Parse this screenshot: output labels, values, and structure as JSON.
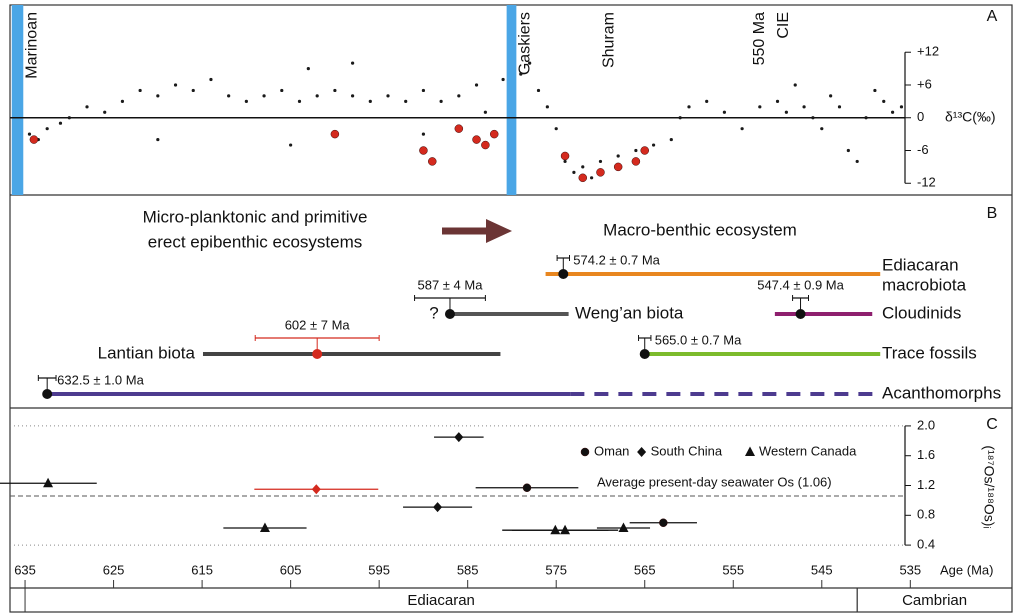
{
  "chart_data": [
    {
      "type": "scatter",
      "panel": "A",
      "xlim": [
        636.7,
        535.6
      ],
      "ylim": [
        -13.6,
        20.1
      ],
      "yticks": [
        {
          "value": 12,
          "label": "+12"
        },
        {
          "value": 6,
          "label": "+6"
        },
        0,
        -6,
        -12
      ],
      "y_axis": "right",
      "grid": "zero",
      "ylabel": "δ¹³C(‰)",
      "bands": [
        {
          "label": "Marinoan",
          "start": 636.5,
          "end": 635.2,
          "color": "#4aa6e6"
        },
        {
          "label": "Gaskiers",
          "start": 580.6,
          "end": 579.5,
          "color": "#4aa6e6"
        }
      ],
      "annotations": [
        {
          "text": "Shuram",
          "x": 569
        },
        {
          "text": "550 Ma",
          "x": 552
        },
        {
          "text": "CIE",
          "x": 549.3
        }
      ],
      "series": [
        {
          "color": "#1a1a1a",
          "marker": "dot",
          "x": [
            634.5,
            633.5,
            632.5,
            631,
            630,
            628,
            626,
            624,
            622,
            620,
            618,
            616,
            614,
            612,
            610,
            608,
            606,
            604,
            602,
            600,
            598,
            596,
            594,
            592,
            590,
            588,
            586,
            584,
            583,
            582,
            581,
            579,
            578,
            577,
            576,
            575,
            574,
            573,
            572,
            571,
            570,
            568,
            566,
            564,
            562,
            561,
            560,
            558,
            556,
            554,
            552,
            550,
            549,
            548,
            547,
            546,
            545,
            544,
            543,
            542,
            541,
            540,
            539,
            538,
            537,
            536,
            620,
            605,
            598,
            590,
            603
          ],
          "values": [
            -3,
            -4,
            -2,
            -1,
            0,
            2,
            1,
            3,
            5,
            4,
            6,
            5,
            7,
            4,
            3,
            4,
            5,
            3,
            4,
            5,
            4,
            3,
            4,
            3,
            5,
            3,
            4,
            6,
            1,
            -3,
            7,
            8,
            10,
            5,
            2,
            -2,
            -8,
            -10,
            -9,
            -11,
            -8,
            -7,
            -6,
            -5,
            -4,
            0,
            2,
            3,
            1,
            -2,
            2,
            3,
            1,
            6,
            2,
            0,
            -2,
            4,
            2,
            -6,
            -8,
            0,
            5,
            3,
            1,
            2,
            -4,
            -5,
            10,
            -3,
            9
          ]
        },
        {
          "color": "#d42a1e",
          "marker": "circle",
          "x": [
            634,
            600,
            590,
            589,
            586,
            584,
            583,
            582,
            574,
            572,
            570,
            568,
            566,
            565
          ],
          "values": [
            -4,
            -3,
            -6,
            -8,
            -2,
            -4,
            -5,
            -3,
            -7,
            -11,
            -10,
            -9,
            -8,
            -6
          ]
        }
      ]
    },
    {
      "type": "range",
      "panel": "B",
      "xlim": [
        636.7,
        535.6
      ],
      "headings": [
        [
          "Micro-planktonic and primitive",
          "erect epibenthic ecosystems"
        ],
        [
          "Macro-benthic ecosystem"
        ]
      ],
      "heading_color": "#7b3636",
      "items": [
        {
          "name": [
            "Ediacaran",
            "macrobiota"
          ],
          "color": "#e8861f",
          "start": 576.2,
          "end": 538.4,
          "age": 574.2,
          "error": 0.7,
          "age_label": "574.2 ± 0.7 Ma"
        },
        {
          "name": [
            "Weng’an biota"
          ],
          "color": "#555555",
          "start": 587,
          "end": 573.6,
          "age": 587,
          "error": 4,
          "age_label": "587 ± 4 Ma",
          "note": "?"
        },
        {
          "name": [
            "Cloudinids"
          ],
          "color": "#8e1f6e",
          "start": 550.3,
          "end": 539.3,
          "age": 547.4,
          "error": 0.9,
          "age_label": "547.4 ± 0.9 Ma"
        },
        {
          "name": [
            "Lantian biota"
          ],
          "color": "#444444",
          "marker_color": "#d42a1e",
          "start": 614.9,
          "end": 581.3,
          "age": 602,
          "error": 7,
          "age_label": "602 ± 7 Ma"
        },
        {
          "name": [
            "Trace fossils"
          ],
          "color": "#7cbb2c",
          "start": 565,
          "end": 538.4,
          "age": 565,
          "error": 0.7,
          "age_label": "565.0 ± 0.7 Ma"
        },
        {
          "name": [
            "Acanthomorphs"
          ],
          "color": "#4d3b8f",
          "start": 632.5,
          "end": 538.4,
          "dashed_from": 573.4,
          "age": 632.5,
          "error": 1.0,
          "age_label": "632.5 ± 1.0 Ma"
        }
      ]
    },
    {
      "type": "scatter",
      "panel": "C",
      "xlim": [
        636.7,
        535.6
      ],
      "ylim": [
        0.2,
        2.16
      ],
      "yticks": [
        {
          "value": 2,
          "label": "2.0"
        },
        1.6,
        1.2,
        0.8,
        0.4
      ],
      "y_axis": "right",
      "grid": "ends",
      "ylabel": "(¹⁸⁷Os/¹⁸⁸Os)ᵢ",
      "legend": "top-right",
      "reference_lines": [
        {
          "value": 1.06,
          "label": "Average present-day seawater Os (1.06)"
        }
      ],
      "series": [
        {
          "name": "Oman",
          "color": "#111111",
          "marker": "circle",
          "x": [
            578.3,
            562.9
          ],
          "values": [
            1.17,
            0.7
          ],
          "xerr": [
            5.8,
            3.8
          ]
        },
        {
          "name": "South China",
          "color": "#111111",
          "marker": "diamond",
          "x": [
            602.1,
            586,
            588.4
          ],
          "values": [
            1.15,
            1.85,
            0.91
          ],
          "xerr": [
            7,
            2.8,
            3.9
          ],
          "point_colors": [
            "#d42a1e",
            "#111111",
            "#111111"
          ]
        },
        {
          "name": "Western Canada",
          "color": "#111111",
          "marker": "triangle",
          "x": [
            632.4,
            607.9,
            575.1,
            574,
            567.4
          ],
          "values": [
            1.23,
            0.63,
            0.6,
            0.6,
            0.63
          ],
          "xerr": [
            5.5,
            4.7,
            6,
            6,
            3
          ]
        }
      ],
      "xticks": [
        635,
        625,
        615,
        605,
        595,
        585,
        575,
        565,
        555,
        545,
        535
      ],
      "xlabel": "Age (Ma)",
      "periods": [
        {
          "name": "Ediacaran",
          "start": 635,
          "end": 541
        },
        {
          "name": "Cambrian",
          "start": 541
        }
      ]
    }
  ]
}
